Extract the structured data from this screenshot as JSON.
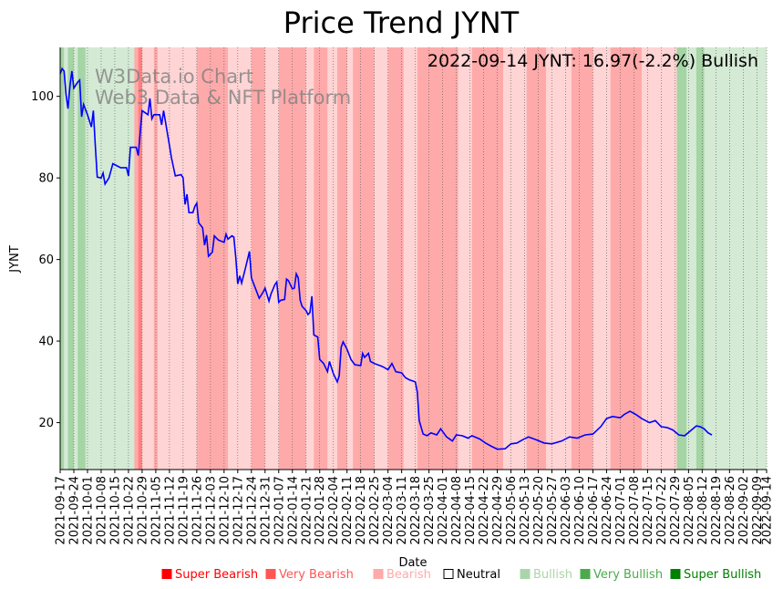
{
  "chart_data": {
    "type": "line",
    "title": "Price Trend JYNT",
    "annotation": "2022-09-14 JYNT: 16.97(-2.2%) Bullish",
    "watermark": [
      "W3Data.io Chart",
      "Web3 Data & NFT Platform"
    ],
    "xlabel": "Date",
    "ylabel": "JYNT",
    "ylim": [
      8.5,
      112
    ],
    "xlim": [
      "2021-09-17",
      "2022-09-14"
    ],
    "yticks": [
      20,
      40,
      60,
      80,
      100
    ],
    "xticks": [
      "2021-09-17",
      "2021-09-24",
      "2021-10-01",
      "2021-10-08",
      "2021-10-15",
      "2021-10-22",
      "2021-10-29",
      "2021-11-05",
      "2021-11-12",
      "2021-11-19",
      "2021-11-26",
      "2021-12-03",
      "2021-12-10",
      "2021-12-17",
      "2021-12-24",
      "2021-12-31",
      "2022-01-07",
      "2022-01-14",
      "2022-01-21",
      "2022-01-28",
      "2022-02-04",
      "2022-02-11",
      "2022-02-18",
      "2022-02-25",
      "2022-03-04",
      "2022-03-11",
      "2022-03-18",
      "2022-03-25",
      "2022-04-01",
      "2022-04-08",
      "2022-04-15",
      "2022-04-22",
      "2022-04-29",
      "2022-05-06",
      "2022-05-13",
      "2022-05-20",
      "2022-05-27",
      "2022-06-03",
      "2022-06-10",
      "2022-06-17",
      "2022-06-24",
      "2022-07-01",
      "2022-07-08",
      "2022-07-15",
      "2022-07-22",
      "2022-07-29",
      "2022-08-05",
      "2022-08-12",
      "2022-08-19",
      "2022-08-26",
      "2022-09-02",
      "2022-09-09",
      "2022-09-14"
    ],
    "grid": "vertical dotted",
    "line_color": "#0000ff",
    "series": [
      {
        "points": [
          [
            "2021-09-17",
            105.5
          ],
          [
            "2021-09-18",
            106.8
          ],
          [
            "2021-09-19",
            106.2
          ],
          [
            "2021-09-20",
            100.5
          ],
          [
            "2021-09-21",
            97.0
          ],
          [
            "2021-09-22",
            102.5
          ],
          [
            "2021-09-23",
            106.2
          ],
          [
            "2021-09-24",
            102.0
          ],
          [
            "2021-09-26",
            103.5
          ],
          [
            "2021-09-27",
            104.0
          ],
          [
            "2021-09-28",
            95.0
          ],
          [
            "2021-09-29",
            98.0
          ],
          [
            "2021-10-01",
            95.5
          ],
          [
            "2021-10-03",
            92.5
          ],
          [
            "2021-10-04",
            96.5
          ],
          [
            "2021-10-05",
            88.0
          ],
          [
            "2021-10-06",
            80.2
          ],
          [
            "2021-10-08",
            80.0
          ],
          [
            "2021-10-09",
            81.2
          ],
          [
            "2021-10-10",
            78.5
          ],
          [
            "2021-10-12",
            80.0
          ],
          [
            "2021-10-14",
            83.5
          ],
          [
            "2021-10-16",
            83.0
          ],
          [
            "2021-10-18",
            82.5
          ],
          [
            "2021-10-21",
            82.5
          ],
          [
            "2021-10-22",
            80.5
          ],
          [
            "2021-10-23",
            87.5
          ],
          [
            "2021-10-26",
            87.5
          ],
          [
            "2021-10-27",
            85.5
          ],
          [
            "2021-10-29",
            96.5
          ],
          [
            "2021-11-01",
            95.5
          ],
          [
            "2021-11-02",
            99.5
          ],
          [
            "2021-11-03",
            94.5
          ],
          [
            "2021-11-04",
            95.5
          ],
          [
            "2021-11-07",
            95.5
          ],
          [
            "2021-11-08",
            93.0
          ],
          [
            "2021-11-09",
            96.5
          ],
          [
            "2021-11-12",
            88.0
          ],
          [
            "2021-11-13",
            85.0
          ],
          [
            "2021-11-15",
            80.5
          ],
          [
            "2021-11-18",
            80.8
          ],
          [
            "2021-11-19",
            80.0
          ],
          [
            "2021-11-20",
            73.5
          ],
          [
            "2021-11-21",
            76.0
          ],
          [
            "2021-11-22",
            71.5
          ],
          [
            "2021-11-24",
            71.5
          ],
          [
            "2021-11-25",
            73.0
          ],
          [
            "2021-11-26",
            73.8
          ],
          [
            "2021-11-27",
            69.0
          ],
          [
            "2021-11-29",
            67.8
          ],
          [
            "2021-11-30",
            63.5
          ],
          [
            "2021-12-01",
            66.0
          ],
          [
            "2021-12-02",
            60.8
          ],
          [
            "2021-12-04",
            61.8
          ],
          [
            "2021-12-05",
            65.8
          ],
          [
            "2021-12-07",
            64.8
          ],
          [
            "2021-12-10",
            64.2
          ],
          [
            "2021-12-11",
            66.2
          ],
          [
            "2021-12-12",
            65.0
          ],
          [
            "2021-12-14",
            65.8
          ],
          [
            "2021-12-15",
            65.5
          ],
          [
            "2021-12-16",
            60.5
          ],
          [
            "2021-12-17",
            54.0
          ],
          [
            "2021-12-18",
            56.0
          ],
          [
            "2021-12-19",
            54.2
          ],
          [
            "2021-12-21",
            58.0
          ],
          [
            "2021-12-23",
            62.0
          ],
          [
            "2021-12-24",
            55.5
          ],
          [
            "2021-12-26",
            53.0
          ],
          [
            "2021-12-28",
            50.5
          ],
          [
            "2021-12-30",
            52.0
          ],
          [
            "2021-12-31",
            53.0
          ],
          [
            "2022-01-02",
            49.8
          ],
          [
            "2022-01-03",
            51.5
          ],
          [
            "2022-01-05",
            53.8
          ],
          [
            "2022-01-06",
            54.5
          ],
          [
            "2022-01-07",
            49.5
          ],
          [
            "2022-01-08",
            50.0
          ],
          [
            "2022-01-10",
            50.2
          ],
          [
            "2022-01-11",
            55.2
          ],
          [
            "2022-01-12",
            54.8
          ],
          [
            "2022-01-14",
            52.8
          ],
          [
            "2022-01-15",
            53.0
          ],
          [
            "2022-01-16",
            56.5
          ],
          [
            "2022-01-17",
            55.5
          ],
          [
            "2022-01-18",
            50.0
          ],
          [
            "2022-01-19",
            48.5
          ],
          [
            "2022-01-21",
            47.5
          ],
          [
            "2022-01-22",
            46.5
          ],
          [
            "2022-01-23",
            47.0
          ],
          [
            "2022-01-24",
            51.0
          ],
          [
            "2022-01-25",
            41.5
          ],
          [
            "2022-01-27",
            41.0
          ],
          [
            "2022-01-28",
            35.5
          ],
          [
            "2022-01-29",
            35.0
          ],
          [
            "2022-01-30",
            34.5
          ],
          [
            "2022-02-01",
            32.5
          ],
          [
            "2022-02-02",
            35.0
          ],
          [
            "2022-02-04",
            32.0
          ],
          [
            "2022-02-06",
            30.0
          ],
          [
            "2022-02-07",
            31.5
          ],
          [
            "2022-02-08",
            38.5
          ],
          [
            "2022-02-09",
            39.8
          ],
          [
            "2022-02-11",
            38.0
          ],
          [
            "2022-02-13",
            35.5
          ],
          [
            "2022-02-15",
            34.2
          ],
          [
            "2022-02-18",
            34.0
          ],
          [
            "2022-02-19",
            37.0
          ],
          [
            "2022-02-20",
            36.0
          ],
          [
            "2022-02-22",
            37.0
          ],
          [
            "2022-02-23",
            35.0
          ],
          [
            "2022-02-25",
            34.5
          ],
          [
            "2022-03-01",
            33.8
          ],
          [
            "2022-03-04",
            33.0
          ],
          [
            "2022-03-06",
            34.5
          ],
          [
            "2022-03-08",
            32.5
          ],
          [
            "2022-03-11",
            32.2
          ],
          [
            "2022-03-13",
            31.0
          ],
          [
            "2022-03-15",
            30.5
          ],
          [
            "2022-03-18",
            30.0
          ],
          [
            "2022-03-19",
            27.5
          ],
          [
            "2022-03-20",
            20.5
          ],
          [
            "2022-03-22",
            17.2
          ],
          [
            "2022-03-24",
            16.8
          ],
          [
            "2022-03-26",
            17.5
          ],
          [
            "2022-03-29",
            17.0
          ],
          [
            "2022-03-31",
            18.5
          ],
          [
            "2022-04-03",
            16.5
          ],
          [
            "2022-04-06",
            15.5
          ],
          [
            "2022-04-08",
            17.0
          ],
          [
            "2022-04-11",
            16.8
          ],
          [
            "2022-04-14",
            16.2
          ],
          [
            "2022-04-16",
            16.8
          ],
          [
            "2022-04-20",
            16.0
          ],
          [
            "2022-04-23",
            15.0
          ],
          [
            "2022-04-26",
            14.2
          ],
          [
            "2022-04-29",
            13.5
          ],
          [
            "2022-05-03",
            13.6
          ],
          [
            "2022-05-06",
            14.8
          ],
          [
            "2022-05-09",
            15.0
          ],
          [
            "2022-05-12",
            15.8
          ],
          [
            "2022-05-15",
            16.5
          ],
          [
            "2022-05-19",
            15.8
          ],
          [
            "2022-05-23",
            15.0
          ],
          [
            "2022-05-27",
            14.8
          ],
          [
            "2022-06-01",
            15.5
          ],
          [
            "2022-06-05",
            16.5
          ],
          [
            "2022-06-09",
            16.2
          ],
          [
            "2022-06-13",
            17.0
          ],
          [
            "2022-06-17",
            17.2
          ],
          [
            "2022-06-21",
            19.0
          ],
          [
            "2022-06-24",
            21.0
          ],
          [
            "2022-06-27",
            21.5
          ],
          [
            "2022-07-01",
            21.2
          ],
          [
            "2022-07-03",
            22.0
          ],
          [
            "2022-07-06",
            22.8
          ],
          [
            "2022-07-09",
            22.0
          ],
          [
            "2022-07-12",
            21.0
          ],
          [
            "2022-07-16",
            20.0
          ],
          [
            "2022-07-19",
            20.5
          ],
          [
            "2022-07-22",
            19.0
          ],
          [
            "2022-07-25",
            18.8
          ],
          [
            "2022-07-28",
            18.2
          ],
          [
            "2022-07-31",
            17.0
          ],
          [
            "2022-08-03",
            16.8
          ],
          [
            "2022-08-06",
            18.0
          ],
          [
            "2022-08-09",
            19.2
          ],
          [
            "2022-08-11",
            19.0
          ],
          [
            "2022-08-13",
            18.5
          ],
          [
            "2022-08-15",
            17.5
          ],
          [
            "2022-08-17",
            16.97
          ]
        ]
      }
    ],
    "sentiment_legend": [
      {
        "label": "Super Bearish",
        "color": "#ff0000",
        "text_color": "#ff0000"
      },
      {
        "label": "Very Bearish",
        "color": "#ff5555",
        "text_color": "#ff5555"
      },
      {
        "label": "Bearish",
        "color": "#ffaaaa",
        "text_color": "#ffaaaa"
      },
      {
        "label": "Neutral",
        "color": "#ffffff",
        "text_color": "#000000"
      },
      {
        "label": "Bullish",
        "color": "#aad5aa",
        "text_color": "#aad5aa"
      },
      {
        "label": "Very Bullish",
        "color": "#4caa4c",
        "text_color": "#4caa4c"
      },
      {
        "label": "Super Bullish",
        "color": "#008000",
        "text_color": "#008000"
      }
    ],
    "background_bands": [
      [
        "2021-09-17",
        "2021-09-19",
        "Very Bullish"
      ],
      [
        "2021-09-19",
        "2021-09-21",
        "Bullish"
      ],
      [
        "2021-09-21",
        "2021-09-24",
        "Very Bullish"
      ],
      [
        "2021-09-24",
        "2021-09-26",
        "Bullish"
      ],
      [
        "2021-09-26",
        "2021-09-30",
        "Very Bullish"
      ],
      [
        "2021-09-30",
        "2021-10-25",
        "Bullish"
      ],
      [
        "2021-10-25",
        "2021-10-27",
        "Very Bearish"
      ],
      [
        "2021-10-27",
        "2021-10-29",
        "Super Bearish"
      ],
      [
        "2021-10-29",
        "2021-11-04",
        "Bearish"
      ],
      [
        "2021-11-04",
        "2021-11-06",
        "Very Bearish"
      ],
      [
        "2021-11-06",
        "2021-11-26",
        "Bearish"
      ],
      [
        "2021-11-26",
        "2021-12-12",
        "Very Bearish"
      ],
      [
        "2021-12-12",
        "2021-12-24",
        "Bearish"
      ],
      [
        "2021-12-24",
        "2021-12-31",
        "Very Bearish"
      ],
      [
        "2021-12-31",
        "2022-01-07",
        "Bearish"
      ],
      [
        "2022-01-07",
        "2022-01-21",
        "Very Bearish"
      ],
      [
        "2022-01-21",
        "2022-01-25",
        "Bearish"
      ],
      [
        "2022-01-25",
        "2022-02-01",
        "Very Bearish"
      ],
      [
        "2022-02-01",
        "2022-02-06",
        "Bearish"
      ],
      [
        "2022-02-06",
        "2022-02-11",
        "Very Bearish"
      ],
      [
        "2022-02-11",
        "2022-02-14",
        "Bearish"
      ],
      [
        "2022-02-14",
        "2022-02-25",
        "Very Bearish"
      ],
      [
        "2022-02-25",
        "2022-03-04",
        "Bearish"
      ],
      [
        "2022-03-04",
        "2022-03-12",
        "Very Bearish"
      ],
      [
        "2022-03-12",
        "2022-03-19",
        "Bearish"
      ],
      [
        "2022-03-19",
        "2022-04-09",
        "Very Bearish"
      ],
      [
        "2022-04-09",
        "2022-04-16",
        "Bearish"
      ],
      [
        "2022-04-16",
        "2022-05-02",
        "Very Bearish"
      ],
      [
        "2022-05-02",
        "2022-05-14",
        "Bearish"
      ],
      [
        "2022-05-14",
        "2022-05-24",
        "Very Bearish"
      ],
      [
        "2022-05-24",
        "2022-06-06",
        "Bearish"
      ],
      [
        "2022-06-06",
        "2022-06-17",
        "Very Bearish"
      ],
      [
        "2022-06-17",
        "2022-06-26",
        "Bearish"
      ],
      [
        "2022-06-26",
        "2022-07-12",
        "Very Bearish"
      ],
      [
        "2022-07-12",
        "2022-07-30",
        "Bearish"
      ],
      [
        "2022-07-30",
        "2022-08-04",
        "Very Bullish"
      ],
      [
        "2022-08-04",
        "2022-08-09",
        "Bullish"
      ],
      [
        "2022-08-09",
        "2022-08-13",
        "Very Bullish"
      ],
      [
        "2022-08-13",
        "2022-08-18",
        "Bullish"
      ],
      [
        "2022-08-18",
        "2022-09-14",
        "Bullish"
      ]
    ]
  }
}
